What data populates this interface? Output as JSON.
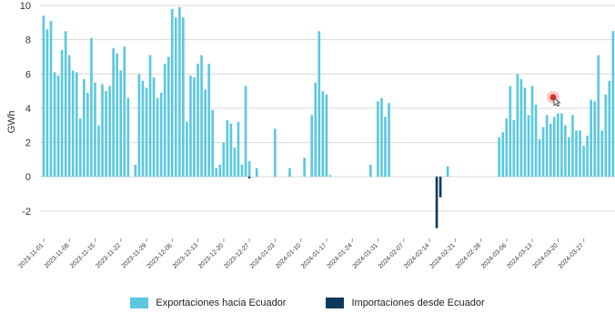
{
  "chart_data": {
    "type": "bar",
    "ylabel": "GWh",
    "ylim": [
      -3.6,
      10
    ],
    "yticks": [
      -2,
      0,
      2,
      4,
      6,
      8,
      10
    ],
    "grid": true,
    "legend_position": "bottom-center",
    "xticks": [
      "2023-11-01",
      "2023-11-08",
      "2023-11-15",
      "2023-11-22",
      "2023-11-29",
      "2023-12-06",
      "2023-12-13",
      "2023-12-20",
      "2023-12-27",
      "2024-01-03",
      "2024-01-10",
      "2024-01-17",
      "2024-01-24",
      "2024-01-31",
      "2024-02-07",
      "2024-02-14",
      "2024-02-21",
      "2024-02-28",
      "2024-03-06",
      "2024-03-13",
      "2024-03-20",
      "2024-03-27"
    ],
    "start_date": "2023-11-01",
    "series": [
      {
        "name": "Exportaciones hacia Ecuador",
        "color": "#5bc8e0",
        "values": [
          9.4,
          8.6,
          9.1,
          6.1,
          5.9,
          7.4,
          8.5,
          7.1,
          6.2,
          6.1,
          3.4,
          5.7,
          4.9,
          8.1,
          5.5,
          3.0,
          5.4,
          5.0,
          5.3,
          7.5,
          7.2,
          6.2,
          7.6,
          4.6,
          0,
          0.7,
          6.0,
          5.6,
          5.2,
          7.1,
          5.8,
          4.6,
          4.9,
          6.6,
          7.0,
          9.8,
          9.3,
          9.9,
          9.3,
          3.2,
          5.9,
          5.8,
          6.6,
          7.1,
          5.1,
          6.6,
          3.9,
          0.5,
          0.7,
          2.0,
          3.3,
          3.1,
          1.7,
          3.2,
          0.7,
          5.3,
          0.9,
          0,
          0.5,
          0,
          0,
          0,
          0,
          2.8,
          0,
          0,
          0,
          0.5,
          0,
          0,
          0,
          1.1,
          0,
          3.6,
          5.5,
          8.5,
          5.0,
          4.8,
          0.1,
          0,
          0,
          0,
          0,
          0,
          0,
          0,
          0,
          0,
          0,
          0.7,
          0,
          4.4,
          4.6,
          3.5,
          4.3,
          0,
          0,
          0,
          0,
          0,
          0,
          0,
          0,
          0,
          0,
          0,
          0,
          0,
          0,
          0,
          0.6,
          0,
          0,
          0,
          0,
          0,
          0,
          0,
          0,
          0,
          0,
          0,
          0,
          0,
          2.3,
          2.6,
          3.4,
          5.3,
          3.3,
          6.0,
          5.7,
          5.2,
          3.6,
          5.3,
          4.2,
          2.2,
          2.9,
          3.6,
          3.1,
          3.5,
          3.7,
          3.7,
          3.0,
          2.3,
          3.6,
          2.7,
          2.7,
          1.8,
          2.4,
          4.5,
          4.4,
          7.1,
          2.7,
          4.8,
          5.6,
          8.5
        ]
      },
      {
        "name": "Importaciones desde Ecuador",
        "color": "#0d3a5c",
        "points": [
          {
            "day": 56,
            "value": -0.1
          },
          {
            "day": 107,
            "value": -3.0
          },
          {
            "day": 108,
            "value": -1.2
          }
        ]
      }
    ]
  },
  "cursor": {
    "color": "#e03030"
  }
}
